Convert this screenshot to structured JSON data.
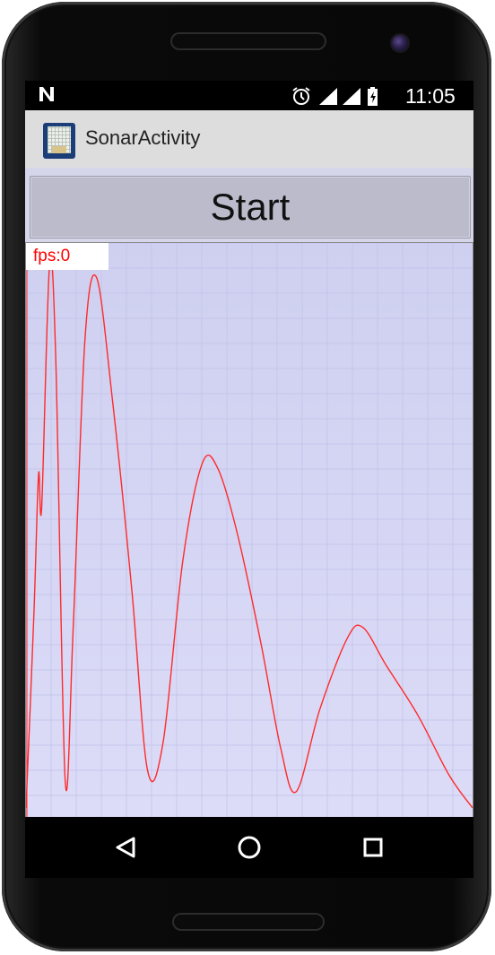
{
  "statusbar": {
    "notification_icon": "n-notification-icon",
    "time": "11:05",
    "icons": [
      "alarm-icon",
      "signal-icon",
      "wifi-signal-icon",
      "battery-charging-icon"
    ]
  },
  "app": {
    "title": "SonarActivity",
    "icon": "app-launcher-icon"
  },
  "controls": {
    "start_label": "Start"
  },
  "plot": {
    "fps_label": "fps:0",
    "line_color": "#ff2a2a",
    "grid_color": "#bfc0e8",
    "background": "#d6d8f6"
  },
  "chart_data": {
    "type": "line",
    "title": "",
    "xlabel": "",
    "ylabel": "",
    "grid": true,
    "series": [
      {
        "values": [
          [
            0.0,
            0.0
          ],
          [
            0.01,
            0.35
          ],
          [
            0.016,
            0.61
          ],
          [
            0.02,
            0.55
          ],
          [
            0.03,
            0.99
          ],
          [
            0.038,
            0.82
          ],
          [
            0.05,
            0.05
          ],
          [
            0.06,
            0.32
          ],
          [
            0.075,
            0.85
          ],
          [
            0.09,
            0.97
          ],
          [
            0.11,
            0.75
          ],
          [
            0.135,
            0.4
          ],
          [
            0.155,
            0.07
          ],
          [
            0.175,
            0.12
          ],
          [
            0.2,
            0.45
          ],
          [
            0.225,
            0.63
          ],
          [
            0.245,
            0.62
          ],
          [
            0.27,
            0.5
          ],
          [
            0.3,
            0.3
          ],
          [
            0.325,
            0.11
          ],
          [
            0.345,
            0.03
          ],
          [
            0.375,
            0.18
          ],
          [
            0.41,
            0.31
          ],
          [
            0.43,
            0.33
          ],
          [
            0.46,
            0.26
          ],
          [
            0.5,
            0.17
          ],
          [
            0.54,
            0.06
          ],
          [
            0.57,
            0.0
          ]
        ]
      }
    ]
  },
  "navbar": {
    "back_icon": "back-triangle-icon",
    "home_icon": "home-circle-icon",
    "recents_icon": "recents-square-icon"
  },
  "device": {
    "frame_color": "#0a0a0a",
    "camera": "front-camera"
  }
}
